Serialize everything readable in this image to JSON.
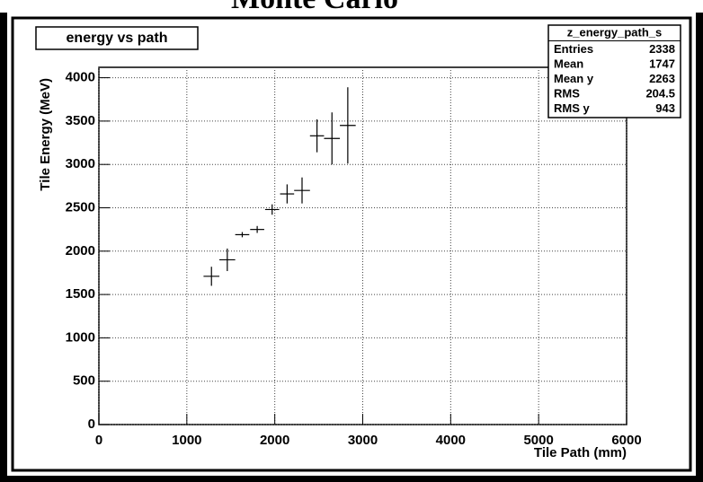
{
  "chart_data": {
    "type": "errorbar",
    "title": "Monte Carlo",
    "legend_title": "energy vs path",
    "xlabel": "Tile Path (mm)",
    "ylabel": "Tile Energy (MeV)",
    "x": [
      1280,
      1460,
      1630,
      1800,
      1970,
      2140,
      2310,
      2480,
      2650,
      2830
    ],
    "xerr": [
      90,
      90,
      80,
      80,
      80,
      80,
      90,
      80,
      90,
      90
    ],
    "values": [
      1710,
      1900,
      2190,
      2250,
      2480,
      2660,
      2700,
      3330,
      3300,
      3450
    ],
    "yerr": [
      110,
      130,
      30,
      40,
      60,
      110,
      150,
      190,
      300,
      440
    ],
    "color": "#000000",
    "xlim": [
      0,
      6000
    ],
    "ylim": [
      0,
      4120
    ],
    "xticks": [
      0,
      1000,
      2000,
      3000,
      4000,
      5000,
      6000
    ],
    "yticks": [
      0,
      500,
      1000,
      1500,
      2000,
      2500,
      3000,
      3500,
      4000
    ],
    "grid": true,
    "stats": {
      "title": "z_energy_path_s",
      "rows": [
        {
          "label": "Entries",
          "value": 2338
        },
        {
          "label": "Mean",
          "value": 1747
        },
        {
          "label": "Mean y",
          "value": 2263
        },
        {
          "label": "RMS",
          "value": 204.5
        },
        {
          "label": "RMS y",
          "value": 943
        }
      ]
    }
  }
}
